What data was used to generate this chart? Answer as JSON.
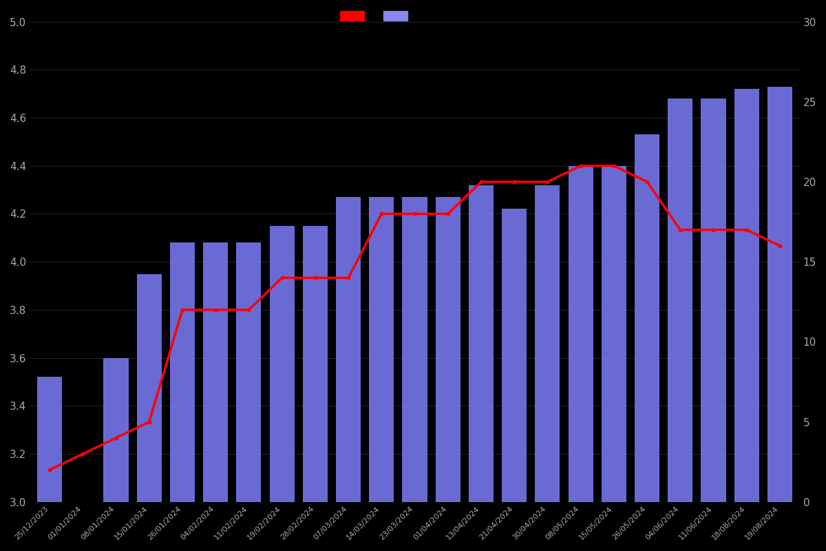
{
  "dates": [
    "25/12/2023",
    "01/01/2024",
    "08/01/2024",
    "15/01/2024",
    "26/01/2024",
    "04/02/2024",
    "11/02/2024",
    "19/02/2024",
    "28/02/2024",
    "07/03/2024",
    "14/03/2024",
    "23/03/2024",
    "01/04/2024",
    "13/04/2024",
    "21/04/2024",
    "30/04/2024",
    "08/05/2024",
    "15/05/2024",
    "26/05/2024",
    "04/06/2024",
    "11/06/2024",
    "18/08/2024",
    "19/08/2024"
  ],
  "bar_ratings": [
    3.52,
    null,
    3.6,
    3.95,
    4.08,
    4.08,
    4.08,
    4.15,
    4.15,
    4.27,
    4.27,
    4.27,
    4.27,
    4.32,
    4.22,
    4.32,
    4.4,
    4.4,
    4.53,
    4.68,
    4.68,
    4.72,
    4.73
  ],
  "line_counts": [
    2,
    3,
    4,
    5,
    12,
    12,
    12,
    14,
    14,
    14,
    18,
    18,
    18,
    20,
    20,
    20,
    21,
    21,
    20,
    17,
    17,
    17,
    16
  ],
  "background_color": "#000000",
  "bar_color": "#7777ee",
  "line_color": "#ff0000",
  "dot_color": "#ff0000",
  "ylim_left": [
    3.0,
    5.0
  ],
  "ylim_right": [
    0,
    30
  ],
  "yticks_left": [
    3.0,
    3.2,
    3.4,
    3.6,
    3.8,
    4.0,
    4.2,
    4.4,
    4.6,
    4.8,
    5.0
  ],
  "yticks_right": [
    0,
    5,
    10,
    15,
    20,
    25,
    30
  ],
  "tick_color": "#aaaaaa",
  "grid_color": "#333333",
  "legend_colors": [
    "#ff0000",
    "#8888ee"
  ]
}
